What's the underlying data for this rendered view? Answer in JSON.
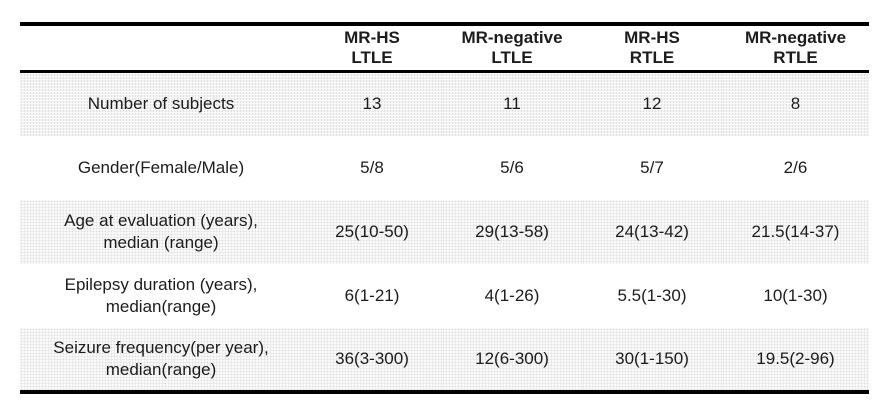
{
  "colors": {
    "border": "#000000",
    "stripe-dot": "#e0e0e0",
    "stripe-bg": "#fbfbfb",
    "text": "#1c1c1c"
  },
  "table": {
    "header_cols": [
      {
        "line1": "MR-HS",
        "line2": "LTLE"
      },
      {
        "line1": "MR-negative",
        "line2": "LTLE"
      },
      {
        "line1": "MR-HS",
        "line2": "RTLE"
      },
      {
        "line1": "MR-negative",
        "line2": "RTLE"
      }
    ],
    "rows": [
      {
        "label_lines": [
          "Number of subjects"
        ],
        "values": [
          "13",
          "11",
          "12",
          "8"
        ]
      },
      {
        "label_lines": [
          "Gender(Female/Male)"
        ],
        "values": [
          "5/8",
          "5/6",
          "5/7",
          "2/6"
        ]
      },
      {
        "label_lines": [
          "Age at evaluation (years),",
          "median (range)"
        ],
        "values": [
          "25(10-50)",
          "29(13-58)",
          "24(13-42)",
          "21.5(14-37)"
        ]
      },
      {
        "label_lines": [
          "Epilepsy duration (years),",
          "median(range)"
        ],
        "values": [
          "6(1-21)",
          "4(1-26)",
          "5.5(1-30)",
          "10(1-30)"
        ]
      },
      {
        "label_lines": [
          "Seizure frequency(per year),",
          "median(range)"
        ],
        "values": [
          "36(3-300)",
          "12(6-300)",
          "30(1-150)",
          "19.5(2-96)"
        ]
      }
    ]
  }
}
